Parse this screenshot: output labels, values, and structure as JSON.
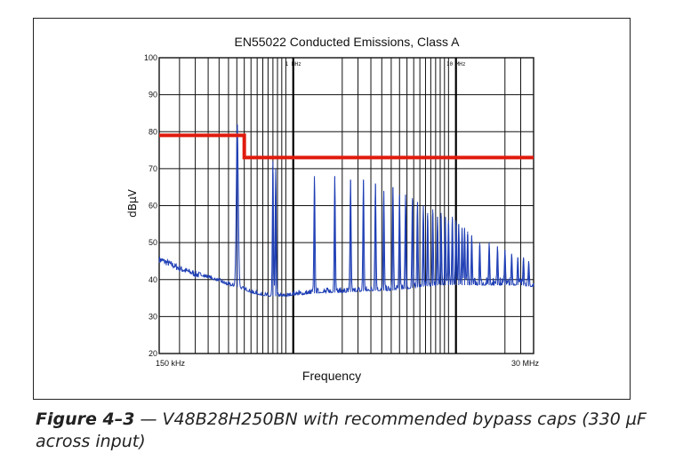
{
  "chart_data": {
    "type": "line",
    "title": "EN55022 Conducted Emissions, Class A",
    "xlabel": "Frequency",
    "ylabel": "dBµV",
    "x_scale": "log",
    "x_unit": "MHz",
    "xlim": [
      0.15,
      30
    ],
    "ylim": [
      20,
      100
    ],
    "y_ticks": [
      20,
      30,
      40,
      50,
      60,
      70,
      80,
      90,
      100
    ],
    "y_tick_labels": [
      "20",
      "30",
      "40",
      "50",
      "60",
      "70",
      "80",
      "90",
      "100"
    ],
    "x_tick_labels": [
      {
        "x": 0.15,
        "label": "150 kHz"
      },
      {
        "x": 30,
        "label": "30 MHz"
      }
    ],
    "decade_markers": [
      {
        "x": 1,
        "label": "1 MHz"
      },
      {
        "x": 10,
        "label": "10 MHz"
      }
    ],
    "grid": true,
    "series": [
      {
        "name": "",
        "color": "#e01b0e",
        "x": [
          0.15,
          0.5,
          0.5,
          30
        ],
        "y": [
          79,
          79,
          73,
          73
        ]
      },
      {
        "name": "",
        "color": "#1f3fb5",
        "baseline": [
          [
            0.15,
            45.5
          ],
          [
            0.17,
            44.5
          ],
          [
            0.2,
            43
          ],
          [
            0.25,
            41.5
          ],
          [
            0.3,
            40.5
          ],
          [
            0.35,
            39.5
          ],
          [
            0.4,
            38.5
          ],
          [
            0.45,
            38
          ],
          [
            0.55,
            36.5
          ],
          [
            0.6,
            36
          ],
          [
            0.7,
            35.5
          ],
          [
            0.8,
            35.5
          ],
          [
            0.9,
            35.5
          ],
          [
            1.0,
            35.8
          ],
          [
            1.2,
            36
          ],
          [
            1.5,
            36.5
          ],
          [
            2,
            36.5
          ],
          [
            3,
            37
          ],
          [
            4,
            37
          ],
          [
            5,
            37.5
          ],
          [
            6,
            38
          ],
          [
            8,
            38.5
          ],
          [
            10,
            38.5
          ],
          [
            12,
            38.5
          ],
          [
            15,
            38.5
          ],
          [
            20,
            38.5
          ],
          [
            25,
            38.5
          ],
          [
            30,
            38
          ]
        ],
        "peaks": [
          [
            0.453,
            82
          ],
          [
            0.75,
            72
          ],
          [
            0.78,
            70
          ],
          [
            1.35,
            68
          ],
          [
            1.8,
            68
          ],
          [
            2.25,
            67
          ],
          [
            2.7,
            67
          ],
          [
            3.2,
            66
          ],
          [
            3.6,
            64
          ],
          [
            4.1,
            65
          ],
          [
            4.5,
            63
          ],
          [
            4.9,
            63
          ],
          [
            5.4,
            62
          ],
          [
            5.8,
            61
          ],
          [
            6.3,
            60
          ],
          [
            6.7,
            58
          ],
          [
            7.2,
            59
          ],
          [
            7.7,
            57
          ],
          [
            8.1,
            58
          ],
          [
            8.6,
            57
          ],
          [
            9.0,
            56
          ],
          [
            9.5,
            57
          ],
          [
            10.0,
            56
          ],
          [
            10.4,
            55
          ],
          [
            10.9,
            54
          ],
          [
            11.3,
            54
          ],
          [
            11.8,
            53
          ],
          [
            12.5,
            52
          ],
          [
            14,
            50
          ],
          [
            16,
            50
          ],
          [
            18,
            49
          ],
          [
            20,
            48
          ],
          [
            22,
            47
          ],
          [
            24,
            46
          ],
          [
            26,
            46
          ],
          [
            28,
            45
          ]
        ]
      }
    ]
  },
  "caption": {
    "label": "Figure 4–3",
    "text": " — V48B28H250BN with recommended bypass caps (330 µF across input)"
  },
  "colors": {
    "limit_line": "#e01b0e",
    "emission_trace": "#1f3fb5",
    "grid": "#111111"
  }
}
